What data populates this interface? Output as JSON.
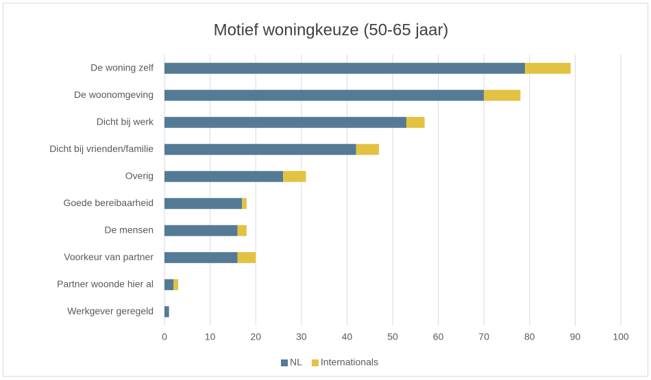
{
  "chart_data": {
    "type": "bar",
    "orientation": "horizontal",
    "stacked": true,
    "title": "Motief woningkeuze (50-65 jaar)",
    "categories": [
      "De woning zelf",
      "De woonomgeving",
      "Dicht bij werk",
      "Dicht bij vrienden/familie",
      "Overig",
      "Goede bereibaarheid",
      "De mensen",
      "Voorkeur van partner",
      "Partner woonde hier al",
      "Werkgever geregeld"
    ],
    "series": [
      {
        "name": "NL",
        "color": "#557a95",
        "values": [
          79,
          70,
          53,
          42,
          26,
          17,
          16,
          16,
          2,
          1
        ]
      },
      {
        "name": "Internationals",
        "color": "#e2c242",
        "values": [
          10,
          8,
          4,
          5,
          5,
          1,
          2,
          4,
          1,
          0
        ]
      }
    ],
    "xlim": [
      0,
      100
    ],
    "xticks": [
      0,
      10,
      20,
      30,
      40,
      50,
      60,
      70,
      80,
      90,
      100
    ],
    "grid": true,
    "legend": "bottom"
  }
}
